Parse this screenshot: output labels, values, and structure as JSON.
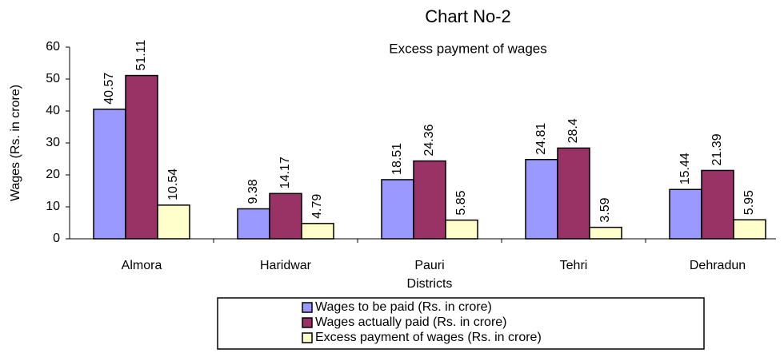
{
  "chart_data": {
    "type": "bar",
    "title": "Chart No-2",
    "subtitle": "Excess payment of wages",
    "x_label": "Districts",
    "y_label": "Wages (Rs. in crore)",
    "categories": [
      "Almora",
      "Haridwar",
      "Pauri",
      "Tehri",
      "Dehradun"
    ],
    "series": [
      {
        "name": "Wages to be paid (Rs. in crore)",
        "color": "#9999ff",
        "values": [
          40.57,
          9.38,
          18.51,
          24.81,
          15.44
        ]
      },
      {
        "name": "Wages actually paid (Rs. in crore)",
        "color": "#993366",
        "values": [
          51.11,
          14.17,
          24.36,
          28.4,
          21.39
        ]
      },
      {
        "name": "Excess payment of wages (Rs. in crore)",
        "color": "#ffffcc",
        "values": [
          10.54,
          4.79,
          5.85,
          3.59,
          5.95
        ]
      }
    ],
    "ylim": [
      0,
      60
    ],
    "yticks": [
      0,
      10,
      20,
      30,
      40,
      50,
      60
    ],
    "legend": "bottom"
  }
}
